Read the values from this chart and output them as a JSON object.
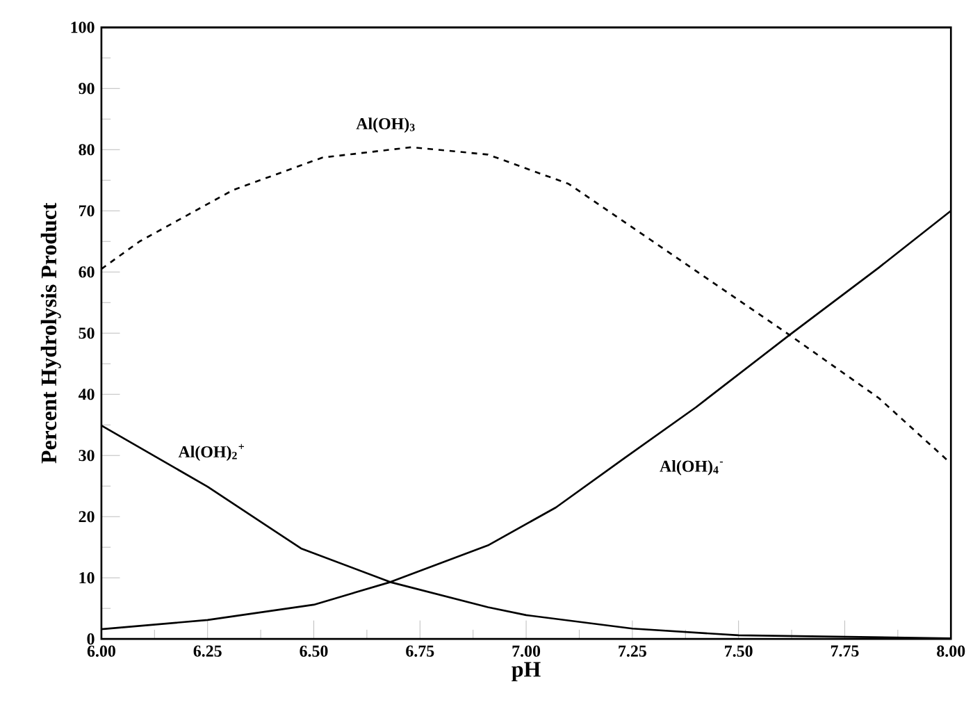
{
  "chart_data": {
    "type": "line",
    "xlabel": "pH",
    "ylabel": "Percent Hydrolysis Product",
    "xlim": [
      6.0,
      8.0
    ],
    "ylim": [
      0,
      100
    ],
    "xticks": [
      {
        "value": 6.0,
        "label": "6.00"
      },
      {
        "value": 6.25,
        "label": "6.25"
      },
      {
        "value": 6.5,
        "label": "6.50"
      },
      {
        "value": 6.75,
        "label": "6.75"
      },
      {
        "value": 7.0,
        "label": "7.00"
      },
      {
        "value": 7.25,
        "label": "7.25"
      },
      {
        "value": 7.5,
        "label": "7.50"
      },
      {
        "value": 7.75,
        "label": "7.75"
      },
      {
        "value": 8.0,
        "label": "8.00"
      }
    ],
    "yticks": [
      0,
      10,
      20,
      30,
      40,
      50,
      60,
      70,
      80,
      90,
      100
    ],
    "grid": false,
    "marker": "none",
    "series": [
      {
        "color": "#000000",
        "line_style": "solid",
        "x": [
          6.0,
          8.0
        ],
        "values": [
          100,
          100
        ]
      },
      {
        "name": "Al(OH)$_{3}$",
        "color": "#000000",
        "line_style": "dashed",
        "x": [
          6.0,
          6.09,
          6.31,
          6.52,
          6.73,
          6.91,
          7.1,
          7.29,
          7.62,
          7.83,
          8.0
        ],
        "values": [
          60.5,
          65,
          73.4,
          78.7,
          80.4,
          79.2,
          74.4,
          65.4,
          49.7,
          39.4,
          28.7
        ]
      },
      {
        "name": "Al(OH)$_{2}$$^{+}$",
        "color": "#000000",
        "line_style": "solid",
        "x": [
          6.0,
          6.25,
          6.47,
          6.68,
          6.91,
          7.0,
          7.25,
          7.5,
          8.0
        ],
        "values": [
          34.9,
          24.9,
          14.8,
          9.3,
          5.2,
          3.9,
          1.7,
          0.6,
          0.1
        ]
      },
      {
        "name": "Al(OH)$_{4}$$^{-}$",
        "color": "#000000",
        "line_style": "solid",
        "x": [
          6.0,
          6.25,
          6.5,
          6.68,
          6.91,
          7.07,
          7.23,
          7.4,
          7.62,
          7.83,
          8.0
        ],
        "values": [
          1.6,
          3.1,
          5.6,
          9.3,
          15.3,
          21.5,
          29.5,
          37.9,
          49.7,
          60.7,
          70
        ]
      }
    ]
  }
}
